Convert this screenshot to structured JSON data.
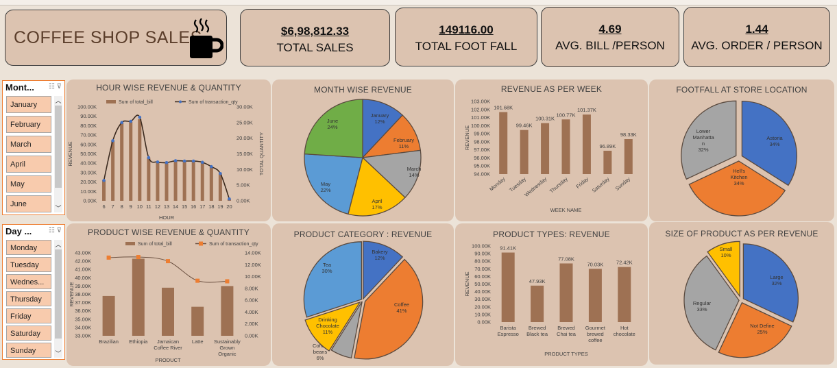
{
  "header": {
    "title": "COFFEE SHOP SALES",
    "kpis": [
      {
        "value": "$6,98,812.33",
        "label": "TOTAL SALES"
      },
      {
        "value": "149116.00",
        "label": "TOTAL FOOT FALL"
      },
      {
        "value": "4.69",
        "label": "AVG. BILL /PERSON"
      },
      {
        "value": "1.44",
        "label": "AVG. ORDER / PERSON"
      }
    ]
  },
  "slicers": {
    "month": {
      "header": "Mont...",
      "items": [
        "January",
        "February",
        "March",
        "April",
        "May",
        "June"
      ]
    },
    "day": {
      "header": "Day ...",
      "items": [
        "Monday",
        "Tuesday",
        "Wednes...",
        "Thursday",
        "Friday",
        "Saturday",
        "Sunday"
      ]
    }
  },
  "colors": {
    "bar": "#9e7153",
    "line": "#3b2a1f",
    "blue": "#4472c4",
    "orange": "#ed7d31",
    "gray": "#a5a5a5",
    "gold": "#ffc000",
    "lightblue": "#5b9bd5",
    "green": "#70ad47",
    "panel": "#dcc3b0"
  },
  "chart_data": [
    {
      "type": "bar",
      "title": "HOUR WISE REVENUE & QUANTITY",
      "xlabel": "HOUR",
      "ylabel": "REVENUE",
      "y2label": "TOTAL QUANTITY",
      "legend": [
        "Sum of total_bill",
        "Sum of transaction_qty"
      ],
      "categories": [
        "6",
        "7",
        "8",
        "9",
        "10",
        "11",
        "12",
        "13",
        "14",
        "15",
        "16",
        "17",
        "18",
        "19",
        "20"
      ],
      "ylim": [
        0,
        100000
      ],
      "y2lim": [
        0,
        30000
      ],
      "yticks": [
        "0.00K",
        "10.00K",
        "20.00K",
        "30.00K",
        "40.00K",
        "50.00K",
        "60.00K",
        "70.00K",
        "80.00K",
        "90.00K",
        "100.00K"
      ],
      "y2ticks": [
        "0.00K",
        "5.00K",
        "10.00K",
        "15.00K",
        "20.00K",
        "25.00K",
        "30.00K"
      ],
      "series": [
        {
          "name": "Sum of total_bill",
          "values": [
            22000,
            64000,
            83000,
            84000,
            87000,
            46000,
            41000,
            40000,
            42000,
            42000,
            42000,
            41000,
            36000,
            29000,
            2000
          ]
        },
        {
          "name": "Sum of transaction_qty",
          "values": [
            6500,
            19200,
            25000,
            25400,
            26700,
            13800,
            12400,
            12200,
            12800,
            12700,
            12700,
            12300,
            10900,
            8700,
            600
          ]
        }
      ]
    },
    {
      "type": "pie",
      "title": "MONTH WISE REVENUE",
      "slices": [
        {
          "label": "January",
          "pct": "12%",
          "value": 12,
          "color": "#4472c4"
        },
        {
          "label": "February",
          "pct": "11%",
          "value": 11,
          "color": "#ed7d31"
        },
        {
          "label": "March",
          "pct": "14%",
          "value": 14,
          "color": "#a5a5a5"
        },
        {
          "label": "April",
          "pct": "17%",
          "value": 17,
          "color": "#ffc000"
        },
        {
          "label": "May",
          "pct": "22%",
          "value": 22,
          "color": "#5b9bd5"
        },
        {
          "label": "June",
          "pct": "24%",
          "value": 24,
          "color": "#70ad47"
        }
      ]
    },
    {
      "type": "bar",
      "title": "REVENUE AS PER WEEK",
      "xlabel": "WEEK NAME",
      "ylabel": "REVENUE",
      "ylim": [
        94000,
        103000
      ],
      "yticks": [
        "94.00K",
        "95.00K",
        "96.00K",
        "97.00K",
        "98.00K",
        "99.00K",
        "100.00K",
        "101.00K",
        "102.00K",
        "103.00K"
      ],
      "categories": [
        "Monday",
        "Tuesday",
        "Wednesday",
        "Thursday",
        "Friday",
        "Saturday",
        "Sunday"
      ],
      "values": [
        101680,
        99460,
        100310,
        100770,
        101370,
        96890,
        98330
      ],
      "labels": [
        "101.68K",
        "99.46K",
        "100.31K",
        "100.77K",
        "101.37K",
        "96.89K",
        "98.33K"
      ]
    },
    {
      "type": "pie",
      "title": "FOOTFALL AT STORE LOCATION",
      "slices": [
        {
          "label": "Astoria",
          "pct": "34%",
          "value": 34,
          "color": "#4472c4"
        },
        {
          "label": "Hell's Kitchen",
          "pct": "34%",
          "value": 34,
          "color": "#ed7d31"
        },
        {
          "label": "Lower Manhattan",
          "pct": "32%",
          "value": 32,
          "color": "#a5a5a5"
        }
      ]
    },
    {
      "type": "bar",
      "title": "PRODUCT WISE REVENUE & QUANTITY",
      "xlabel": "PRODUCT",
      "ylabel": "REVENUE",
      "legend": [
        "Sum of total_bill",
        "Sum of transaction_qty"
      ],
      "categories": [
        "Brazilian",
        "Ethiopia",
        "Jamaican Coffee River",
        "Latte",
        "Sustainably Grown Organic"
      ],
      "ylim": [
        33000,
        43000
      ],
      "y2lim": [
        0,
        14000
      ],
      "yticks": [
        "33.00K",
        "34.00K",
        "35.00K",
        "36.00K",
        "37.00K",
        "38.00K",
        "39.00K",
        "40.00K",
        "41.00K",
        "42.00K",
        "43.00K"
      ],
      "y2ticks": [
        "0.00K",
        "2.00K",
        "4.00K",
        "6.00K",
        "8.00K",
        "10.00K",
        "12.00K",
        "14.00K"
      ],
      "series": [
        {
          "name": "Sum of total_bill",
          "values": [
            37800,
            42300,
            38800,
            36500,
            39000
          ]
        },
        {
          "name": "Sum of transaction_qty",
          "values": [
            13200,
            13300,
            12600,
            9300,
            9200
          ]
        }
      ]
    },
    {
      "type": "pie",
      "title": "PRODUCT CATEGORY : REVENUE",
      "slices": [
        {
          "label": "Bakery",
          "pct": "12%",
          "value": 12,
          "color": "#4472c4"
        },
        {
          "label": "Coffee",
          "pct": "41%",
          "value": 41,
          "color": "#ed7d31"
        },
        {
          "label": "Coffee beans",
          "pct": "6%",
          "value": 6,
          "color": "#a5a5a5"
        },
        {
          "label": "Drinking Chocolate",
          "pct": "11%",
          "value": 11,
          "color": "#ffc000"
        },
        {
          "label": "Tea",
          "pct": "30%",
          "value": 30,
          "color": "#5b9bd5"
        }
      ]
    },
    {
      "type": "bar",
      "title": "PRODUCT TYPES: REVENUE",
      "xlabel": "PRODUCT TYPES",
      "ylabel": "REVENUE",
      "ylim": [
        0,
        100000
      ],
      "yticks": [
        "0.00K",
        "10.00K",
        "20.00K",
        "30.00K",
        "40.00K",
        "50.00K",
        "60.00K",
        "70.00K",
        "80.00K",
        "90.00K",
        "100.00K"
      ],
      "categories": [
        "Barista Espresso",
        "Brewed Black tea",
        "Brewed Chai tea",
        "Gourmet brewed coffee",
        "Hot chocolate"
      ],
      "values": [
        91410,
        47930,
        77080,
        70030,
        72420
      ],
      "labels": [
        "91.41K",
        "47.93K",
        "77.08K",
        "70.03K",
        "72.42K"
      ]
    },
    {
      "type": "pie",
      "title": "SIZE OF PRODUCT AS PER REVENUE",
      "slices": [
        {
          "label": "Large",
          "pct": "32%",
          "value": 32,
          "color": "#4472c4"
        },
        {
          "label": "Not Define",
          "pct": "25%",
          "value": 25,
          "color": "#ed7d31"
        },
        {
          "label": "Regular",
          "pct": "33%",
          "value": 33,
          "color": "#a5a5a5"
        },
        {
          "label": "Small",
          "pct": "10%",
          "value": 10,
          "color": "#ffc000"
        }
      ]
    }
  ]
}
